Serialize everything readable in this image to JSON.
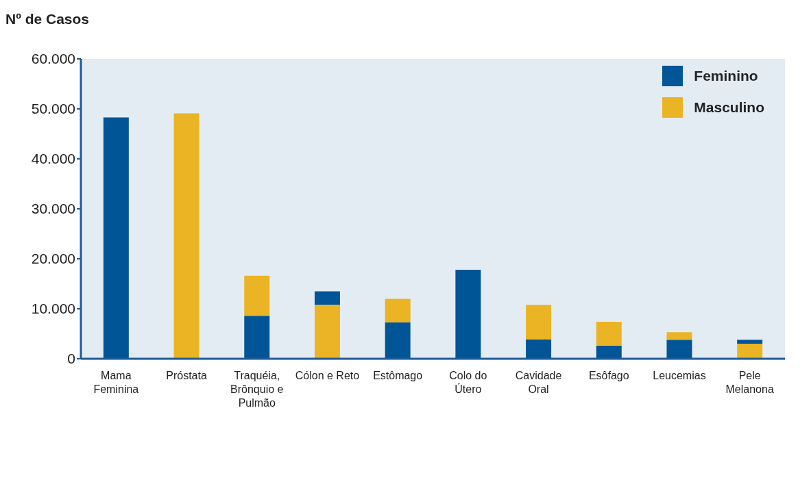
{
  "chart_data": {
    "type": "bar",
    "ylabel": "Nº de Casos",
    "categories": [
      "Mama Feminina",
      "Próstata",
      "Traquéia, Brônquio e Pulmão",
      "Cólon e Reto",
      "Estômago",
      "Colo do Útero",
      "Cavidade Oral",
      "Esôfago",
      "Leucemias",
      "Pele Melanona"
    ],
    "series": [
      {
        "name": "Feminino",
        "color": "#005596",
        "values": [
          48300,
          null,
          8600,
          2700,
          7300,
          17800,
          3900,
          2600,
          3800,
          800
        ],
        "base": [
          0,
          null,
          0,
          10800,
          0,
          0,
          0,
          0,
          0,
          3000
        ]
      },
      {
        "name": "Masculino",
        "color": "#ebb424",
        "values": [
          null,
          49100,
          8000,
          10800,
          4700,
          null,
          6900,
          4800,
          1500,
          3000
        ],
        "base": [
          null,
          0,
          8600,
          0,
          7300,
          null,
          3900,
          2600,
          3800,
          0
        ]
      }
    ],
    "ylim": [
      0,
      60000
    ],
    "yticks": [
      {
        "value": 0,
        "label": "0"
      },
      {
        "value": 10000,
        "label": "10.000"
      },
      {
        "value": 20000,
        "label": "20.000"
      },
      {
        "value": 30000,
        "label": "30.000"
      },
      {
        "value": 40000,
        "label": "40.000"
      },
      {
        "value": 50000,
        "label": "50.000"
      },
      {
        "value": 60000,
        "label": "60.000"
      }
    ],
    "legend": "top right"
  }
}
